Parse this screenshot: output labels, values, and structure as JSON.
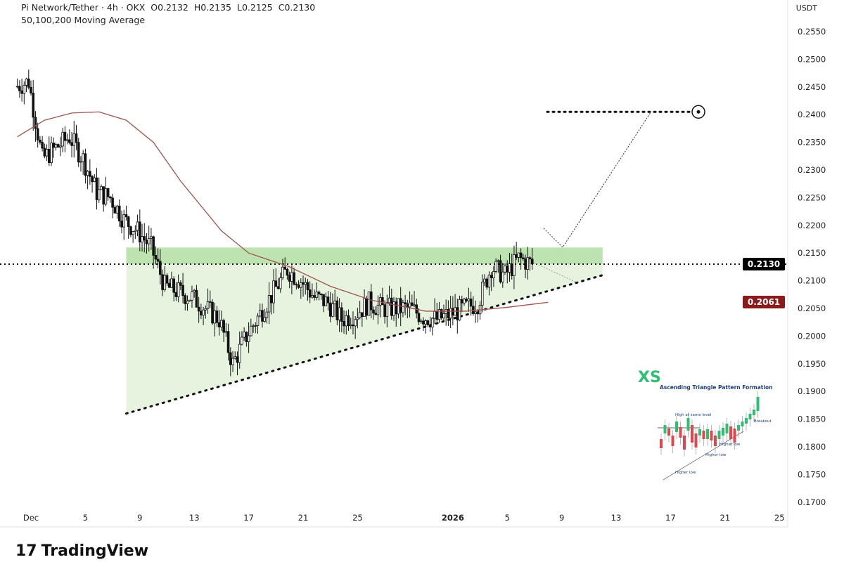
{
  "header": {
    "symbol": "Pi Network/Tether · 4h · OKX",
    "open": "O0.2132",
    "high": "H0.2135",
    "low": "L0.2125",
    "close": "C0.2130",
    "indicator": "50,100,200 Moving Average"
  },
  "axis_unit": "USDT",
  "price_labels": {
    "last": "0.2130",
    "ma": "0.2061",
    "last_color": "#000000",
    "ma_color": "#8b1a1a"
  },
  "brand": "TradingView",
  "inset": {
    "logo": "XS",
    "title": "Ascending Triangle Pattern Formation",
    "labels": [
      "High at same level",
      "Breakout",
      "Higher low",
      "Higher low",
      "Higher low"
    ]
  },
  "chart_data": {
    "type": "candlestick",
    "title": "Pi Network/Tether 4h",
    "ylabel": "USDT",
    "ylim": [
      0.169,
      0.258
    ],
    "yticks": [
      "0.2550",
      "0.2500",
      "0.2450",
      "0.2400",
      "0.2350",
      "0.2300",
      "0.2250",
      "0.2200",
      "0.2150",
      "0.2100",
      "0.2050",
      "0.2000",
      "0.1950",
      "0.1900",
      "0.1850",
      "0.1800",
      "0.1750",
      "0.1700"
    ],
    "xticks": [
      {
        "label": "Dec",
        "day": 0
      },
      {
        "label": "5",
        "day": 4
      },
      {
        "label": "9",
        "day": 8
      },
      {
        "label": "13",
        "day": 12
      },
      {
        "label": "17",
        "day": 16
      },
      {
        "label": "21",
        "day": 20
      },
      {
        "label": "25",
        "day": 24
      },
      {
        "label": "2026",
        "day": 31
      },
      {
        "label": "5",
        "day": 35
      },
      {
        "label": "9",
        "day": 39
      },
      {
        "label": "13",
        "day": 43
      },
      {
        "label": "17",
        "day": 47
      },
      {
        "label": "21",
        "day": 51
      },
      {
        "label": "25",
        "day": 55
      }
    ],
    "daily_close_approx": {
      "start_day": -1,
      "values": [
        0.245,
        0.246,
        0.232,
        0.234,
        0.236,
        0.232,
        0.226,
        0.225,
        0.221,
        0.219,
        0.216,
        0.209,
        0.208,
        0.207,
        0.205,
        0.203,
        0.195,
        0.2,
        0.204,
        0.208,
        0.212,
        0.21,
        0.207,
        0.206,
        0.203,
        0.204,
        0.206,
        0.205,
        0.205,
        0.205,
        0.2035,
        0.203,
        0.204,
        0.205,
        0.206,
        0.2125,
        0.211,
        0.214,
        0.213
      ]
    },
    "moving_average": {
      "points": [
        [
          -1,
          0.236
        ],
        [
          1,
          0.239
        ],
        [
          3,
          0.2403
        ],
        [
          5,
          0.2405
        ],
        [
          7,
          0.239
        ],
        [
          9,
          0.235
        ],
        [
          11,
          0.228
        ],
        [
          14,
          0.219
        ],
        [
          16,
          0.215
        ],
        [
          19,
          0.2125
        ],
        [
          22,
          0.209
        ],
        [
          25,
          0.2065
        ],
        [
          29,
          0.2045
        ],
        [
          32,
          0.2045
        ],
        [
          35,
          0.2052
        ],
        [
          38,
          0.2061
        ]
      ]
    },
    "resistance_zone": [
      0.213,
      0.216
    ],
    "support_line": [
      [
        7,
        0.186
      ],
      [
        42,
        0.211
      ]
    ],
    "current_price_line": 0.213,
    "target": 0.2405
  }
}
